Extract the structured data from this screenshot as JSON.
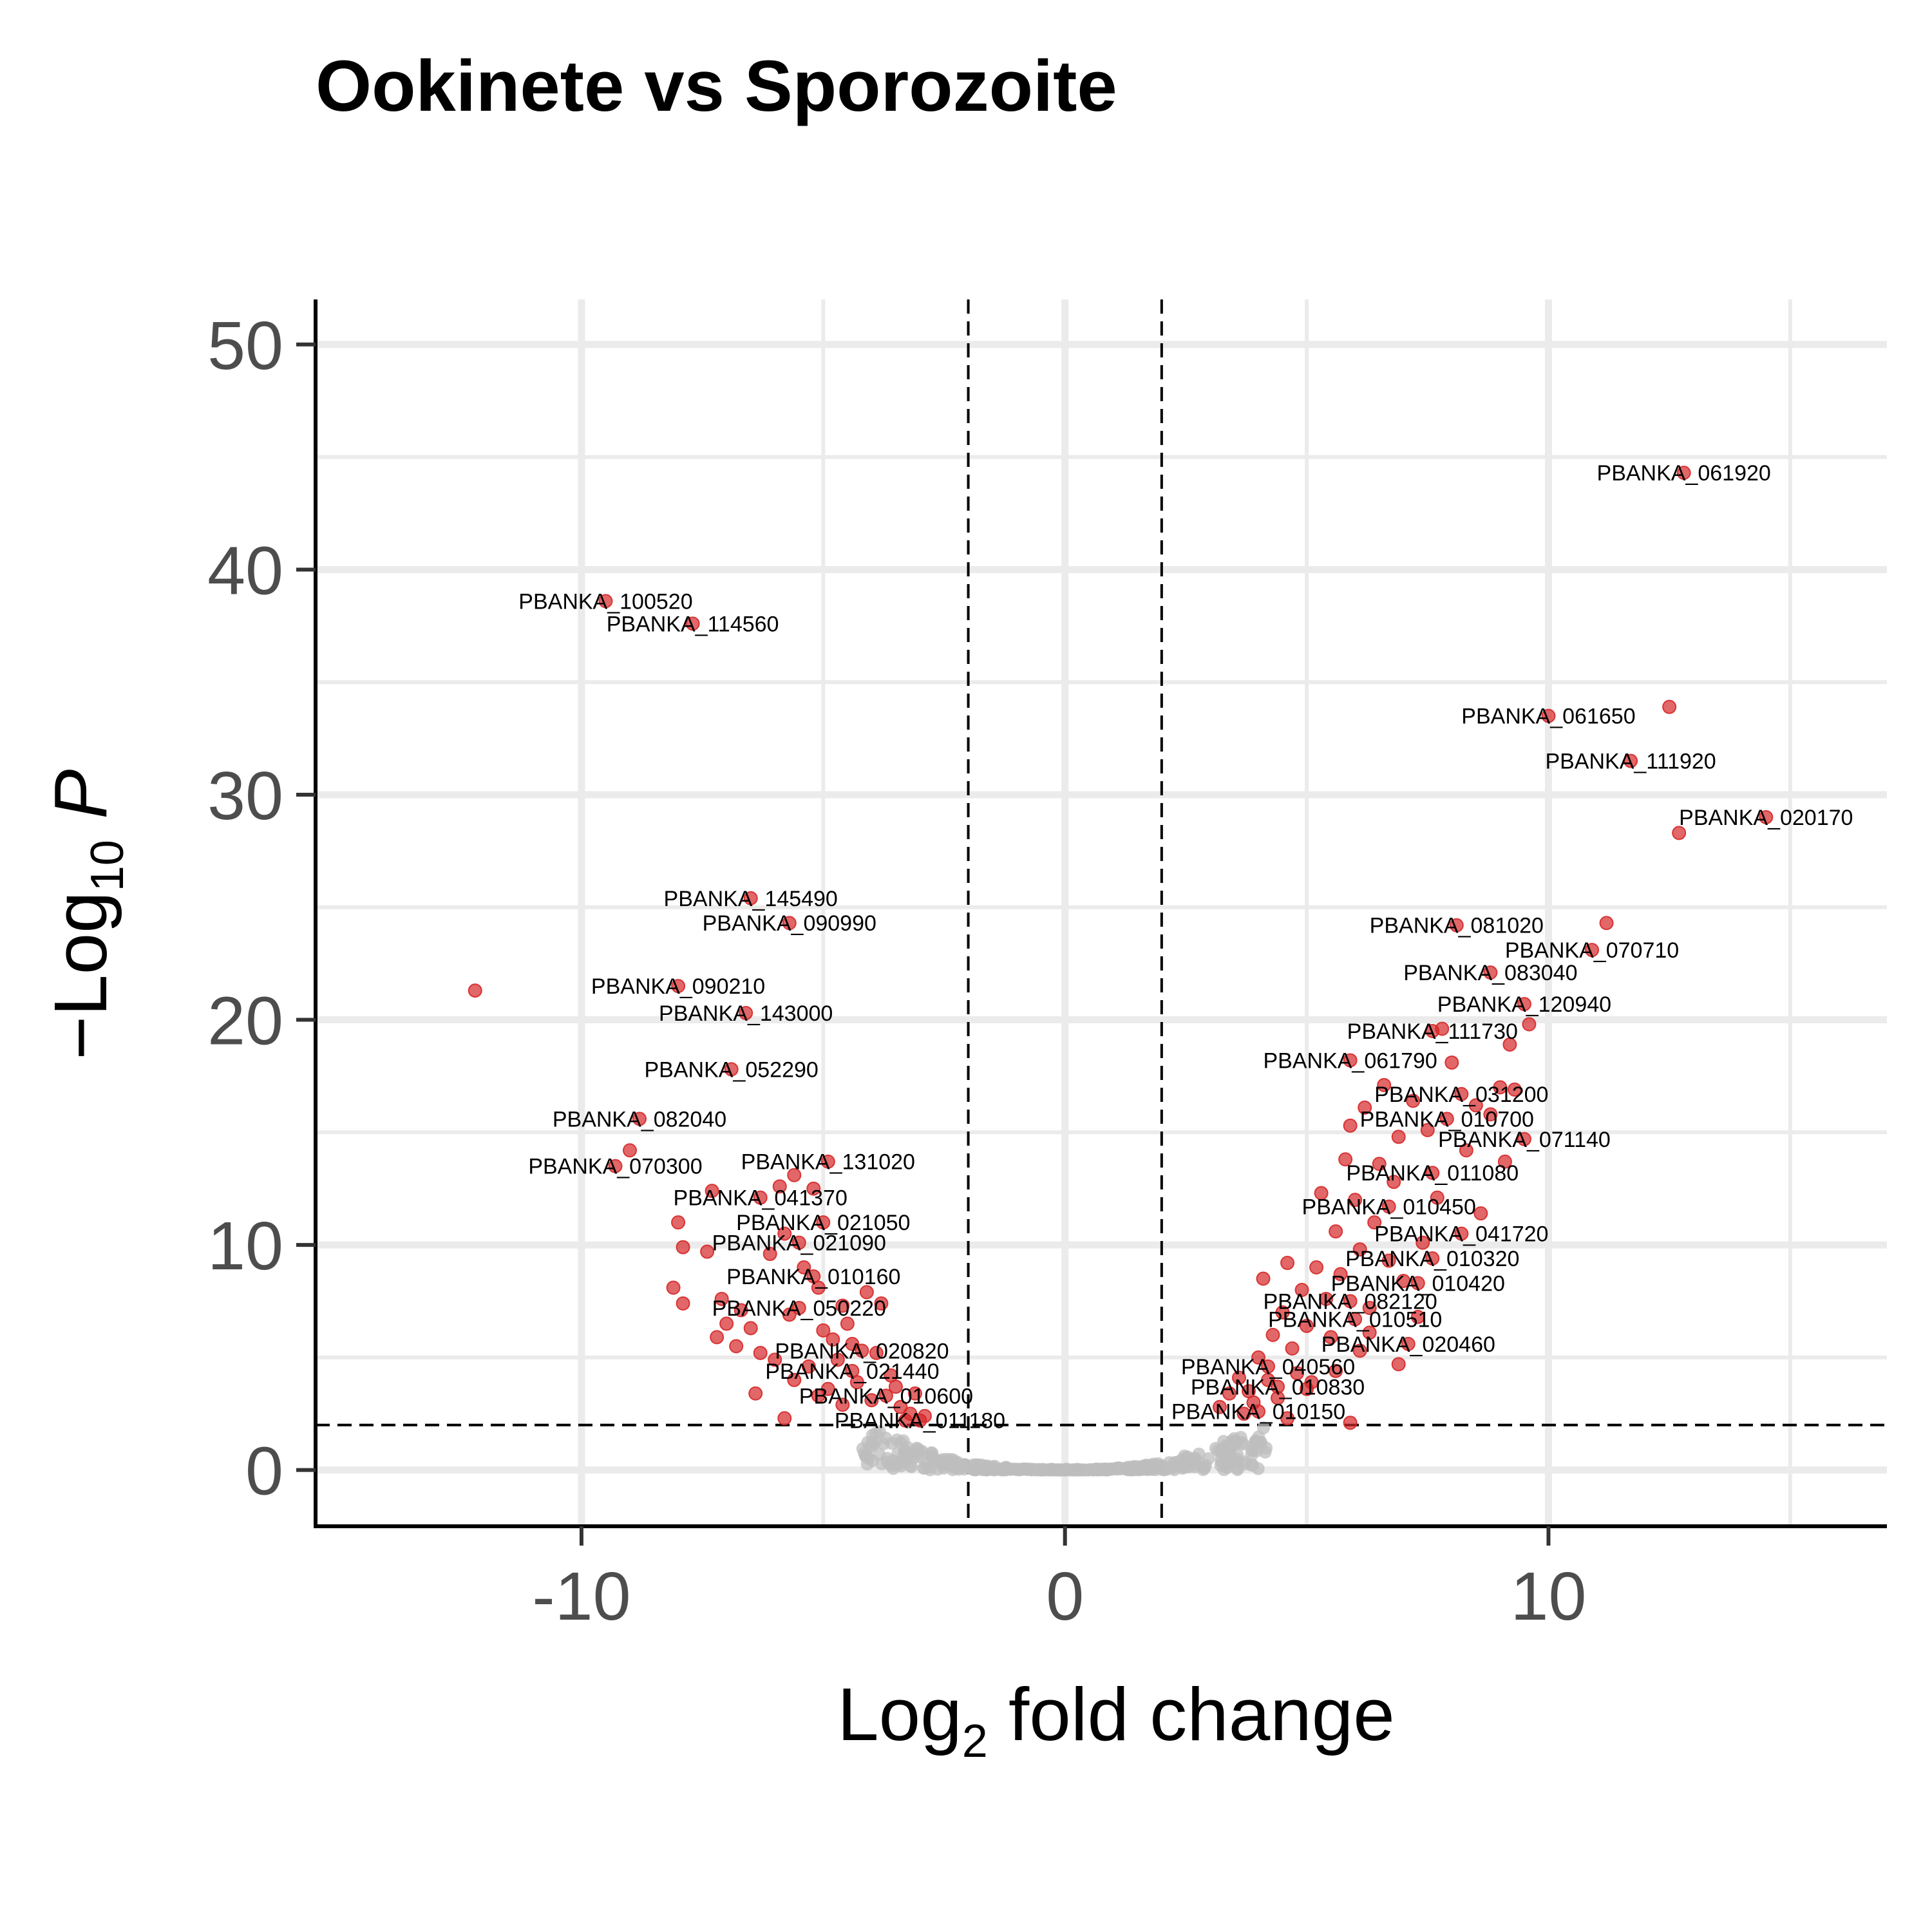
{
  "colors": {
    "significant": "#d62728",
    "nonsignificant": "#bdbdbd",
    "grid": "#ebebeb",
    "tick_text": "#4d4d4d",
    "text": "#000000"
  },
  "chart_data": {
    "type": "scatter",
    "title": "Ookinete vs Sporozoite",
    "xlabel": {
      "main": "Log",
      "sub": "2",
      "rest": " fold change"
    },
    "ylabel": {
      "prefix": "−Log",
      "sub": "10",
      "rest": " P"
    },
    "xlim": [
      -15.5,
      17
    ],
    "ylim": [
      -2.5,
      52
    ],
    "x_ticks": [
      -10,
      0,
      10
    ],
    "x_tick_labels": [
      "-10",
      "0",
      "10"
    ],
    "y_ticks": [
      0,
      10,
      20,
      30,
      40,
      50
    ],
    "y_tick_labels": [
      "0",
      "10",
      "20",
      "30",
      "40",
      "50"
    ],
    "grid": true,
    "legend": "none",
    "cutoffs": {
      "log2fc": [
        -2,
        2
      ],
      "neglog10p": 2
    },
    "labeled_points": [
      {
        "label": "PBANKA_061920",
        "x": 12.8,
        "y": 44.3
      },
      {
        "label": "PBANKA_100520",
        "x": -9.5,
        "y": 38.6
      },
      {
        "label": "PBANKA_114560",
        "x": -7.7,
        "y": 37.6
      },
      {
        "label": "PBANKA_061650",
        "x": 10.0,
        "y": 33.5
      },
      {
        "label": "PBANKA_111920",
        "x": 11.7,
        "y": 31.5
      },
      {
        "label": "PBANKA_020170",
        "x": 14.5,
        "y": 29.0
      },
      {
        "label": "PBANKA_145490",
        "x": -6.5,
        "y": 25.4
      },
      {
        "label": "PBANKA_090990",
        "x": -5.7,
        "y": 24.3
      },
      {
        "label": "PBANKA_081020",
        "x": 8.1,
        "y": 24.2
      },
      {
        "label": "PBANKA_070710",
        "x": 10.9,
        "y": 23.1
      },
      {
        "label": "PBANKA_083040",
        "x": 8.8,
        "y": 22.1
      },
      {
        "label": "PBANKA_090210",
        "x": -8.0,
        "y": 21.5
      },
      {
        "label": "PBANKA_120940",
        "x": 9.5,
        "y": 20.7
      },
      {
        "label": "PBANKA_143000",
        "x": -6.6,
        "y": 20.3
      },
      {
        "label": "PBANKA_111730",
        "x": 7.6,
        "y": 19.5
      },
      {
        "label": "PBANKA_061790",
        "x": 5.9,
        "y": 18.2
      },
      {
        "label": "PBANKA_052290",
        "x": -6.9,
        "y": 17.8
      },
      {
        "label": "PBANKA_031200",
        "x": 8.2,
        "y": 16.7
      },
      {
        "label": "PBANKA_010700",
        "x": 7.9,
        "y": 15.6
      },
      {
        "label": "PBANKA_082040",
        "x": -8.8,
        "y": 15.6
      },
      {
        "label": "PBANKA_071140",
        "x": 9.5,
        "y": 14.7
      },
      {
        "label": "PBANKA_131020",
        "x": -4.9,
        "y": 13.7
      },
      {
        "label": "PBANKA_070300",
        "x": -9.3,
        "y": 13.5
      },
      {
        "label": "PBANKA_011080",
        "x": 7.6,
        "y": 13.2
      },
      {
        "label": "PBANKA_041370",
        "x": -6.3,
        "y": 12.1
      },
      {
        "label": "PBANKA_010450",
        "x": 6.7,
        "y": 11.7
      },
      {
        "label": "PBANKA_021050",
        "x": -5.0,
        "y": 11.0
      },
      {
        "label": "PBANKA_041720",
        "x": 8.2,
        "y": 10.5
      },
      {
        "label": "PBANKA_021090",
        "x": -5.5,
        "y": 10.1
      },
      {
        "label": "PBANKA_010320",
        "x": 7.6,
        "y": 9.4
      },
      {
        "label": "PBANKA_010160",
        "x": -5.2,
        "y": 8.6
      },
      {
        "label": "PBANKA_010420",
        "x": 7.3,
        "y": 8.3
      },
      {
        "label": "PBANKA_082120",
        "x": 5.9,
        "y": 7.5
      },
      {
        "label": "PBANKA_050220",
        "x": -5.5,
        "y": 7.2
      },
      {
        "label": "PBANKA_010510",
        "x": 6.0,
        "y": 6.7
      },
      {
        "label": "PBANKA_020460",
        "x": 7.1,
        "y": 5.6
      },
      {
        "label": "PBANKA_020820",
        "x": -4.2,
        "y": 5.3
      },
      {
        "label": "PBANKA_040560",
        "x": 4.2,
        "y": 4.6
      },
      {
        "label": "PBANKA_021440",
        "x": -4.4,
        "y": 4.4
      },
      {
        "label": "PBANKA_010830",
        "x": 4.4,
        "y": 3.7
      },
      {
        "label": "PBANKA_010600",
        "x": -3.7,
        "y": 3.3
      },
      {
        "label": "PBANKA_010150",
        "x": 4.0,
        "y": 2.6
      },
      {
        "label": "PBANKA_011180",
        "x": -3.0,
        "y": 2.2
      }
    ],
    "unlabeled_significant_points": [
      {
        "x": -12.2,
        "y": 21.3
      },
      {
        "x": 12.7,
        "y": 28.3
      },
      {
        "x": 12.5,
        "y": 33.9
      },
      {
        "x": 11.2,
        "y": 24.3
      },
      {
        "x": -9.0,
        "y": 14.2
      },
      {
        "x": -8.0,
        "y": 11.0
      },
      {
        "x": -7.9,
        "y": 9.9
      },
      {
        "x": -8.1,
        "y": 8.1
      },
      {
        "x": -7.9,
        "y": 7.4
      },
      {
        "x": -7.3,
        "y": 12.4
      },
      {
        "x": -7.4,
        "y": 9.7
      },
      {
        "x": -7.1,
        "y": 7.6
      },
      {
        "x": -7.0,
        "y": 6.5
      },
      {
        "x": -7.2,
        "y": 5.9
      },
      {
        "x": -6.8,
        "y": 5.5
      },
      {
        "x": -6.5,
        "y": 6.3
      },
      {
        "x": -6.3,
        "y": 5.2
      },
      {
        "x": -6.4,
        "y": 3.4
      },
      {
        "x": -6.0,
        "y": 4.9
      },
      {
        "x": -5.8,
        "y": 2.3
      },
      {
        "x": -5.6,
        "y": 13.1
      },
      {
        "x": -5.9,
        "y": 12.6
      },
      {
        "x": -5.2,
        "y": 12.5
      },
      {
        "x": -5.4,
        "y": 9.0
      },
      {
        "x": -5.1,
        "y": 8.1
      },
      {
        "x": -5.7,
        "y": 6.9
      },
      {
        "x": -5.0,
        "y": 6.2
      },
      {
        "x": -4.8,
        "y": 5.8
      },
      {
        "x": -4.6,
        "y": 7.3
      },
      {
        "x": -4.1,
        "y": 7.9
      },
      {
        "x": -3.8,
        "y": 7.4
      },
      {
        "x": -4.5,
        "y": 6.5
      },
      {
        "x": -4.3,
        "y": 3.9
      },
      {
        "x": -4.0,
        "y": 3.1
      },
      {
        "x": -3.6,
        "y": 4.2
      },
      {
        "x": -3.4,
        "y": 2.8
      },
      {
        "x": -3.2,
        "y": 2.5
      },
      {
        "x": -3.1,
        "y": 3.4
      },
      {
        "x": -2.9,
        "y": 2.4
      },
      {
        "x": -5.3,
        "y": 4.6
      },
      {
        "x": -5.6,
        "y": 4.0
      },
      {
        "x": -4.9,
        "y": 3.6
      },
      {
        "x": -4.6,
        "y": 2.9
      },
      {
        "x": -3.9,
        "y": 5.2
      },
      {
        "x": -6.1,
        "y": 9.6
      },
      {
        "x": -5.8,
        "y": 10.5
      },
      {
        "x": -6.7,
        "y": 7.1
      },
      {
        "x": -4.7,
        "y": 4.9
      },
      {
        "x": -4.4,
        "y": 5.6
      },
      {
        "x": -3.5,
        "y": 3.7
      },
      {
        "x": -3.3,
        "y": 2.2
      },
      {
        "x": -5.1,
        "y": 3.3
      },
      {
        "x": 3.2,
        "y": 2.8
      },
      {
        "x": 3.4,
        "y": 3.4
      },
      {
        "x": 3.6,
        "y": 4.1
      },
      {
        "x": 3.7,
        "y": 2.5
      },
      {
        "x": 3.9,
        "y": 3.0
      },
      {
        "x": 4.0,
        "y": 5.0
      },
      {
        "x": 4.1,
        "y": 8.5
      },
      {
        "x": 4.3,
        "y": 6.0
      },
      {
        "x": 4.4,
        "y": 3.2
      },
      {
        "x": 4.5,
        "y": 7.0
      },
      {
        "x": 4.6,
        "y": 9.2
      },
      {
        "x": 4.7,
        "y": 5.4
      },
      {
        "x": 4.8,
        "y": 4.3
      },
      {
        "x": 4.9,
        "y": 8.0
      },
      {
        "x": 5.0,
        "y": 6.4
      },
      {
        "x": 5.1,
        "y": 3.9
      },
      {
        "x": 5.2,
        "y": 9.0
      },
      {
        "x": 5.3,
        "y": 12.3
      },
      {
        "x": 5.4,
        "y": 7.6
      },
      {
        "x": 5.5,
        "y": 5.9
      },
      {
        "x": 5.6,
        "y": 10.6
      },
      {
        "x": 5.7,
        "y": 8.7
      },
      {
        "x": 5.8,
        "y": 13.8
      },
      {
        "x": 5.9,
        "y": 15.3
      },
      {
        "x": 6.0,
        "y": 12.0
      },
      {
        "x": 6.1,
        "y": 9.8
      },
      {
        "x": 6.2,
        "y": 16.1
      },
      {
        "x": 6.3,
        "y": 7.2
      },
      {
        "x": 6.4,
        "y": 11.0
      },
      {
        "x": 6.5,
        "y": 13.6
      },
      {
        "x": 6.6,
        "y": 17.1
      },
      {
        "x": 6.7,
        "y": 9.3
      },
      {
        "x": 6.8,
        "y": 12.8
      },
      {
        "x": 6.9,
        "y": 14.8
      },
      {
        "x": 7.0,
        "y": 8.4
      },
      {
        "x": 7.2,
        "y": 16.4
      },
      {
        "x": 7.4,
        "y": 10.1
      },
      {
        "x": 7.5,
        "y": 15.1
      },
      {
        "x": 7.7,
        "y": 12.1
      },
      {
        "x": 7.8,
        "y": 19.6
      },
      {
        "x": 8.0,
        "y": 18.1
      },
      {
        "x": 8.3,
        "y": 14.2
      },
      {
        "x": 8.5,
        "y": 16.2
      },
      {
        "x": 8.6,
        "y": 11.4
      },
      {
        "x": 8.8,
        "y": 15.8
      },
      {
        "x": 9.0,
        "y": 17.0
      },
      {
        "x": 9.1,
        "y": 13.7
      },
      {
        "x": 9.2,
        "y": 18.9
      },
      {
        "x": 9.3,
        "y": 16.9
      },
      {
        "x": 9.6,
        "y": 19.8
      },
      {
        "x": 6.9,
        "y": 4.7
      },
      {
        "x": 6.1,
        "y": 5.3
      },
      {
        "x": 5.6,
        "y": 4.4
      },
      {
        "x": 5.0,
        "y": 3.6
      },
      {
        "x": 4.6,
        "y": 2.3
      },
      {
        "x": 5.9,
        "y": 2.1
      },
      {
        "x": 6.3,
        "y": 6.1
      },
      {
        "x": 7.3,
        "y": 6.8
      },
      {
        "x": 4.2,
        "y": 4.0
      },
      {
        "x": 3.8,
        "y": 3.5
      }
    ]
  }
}
